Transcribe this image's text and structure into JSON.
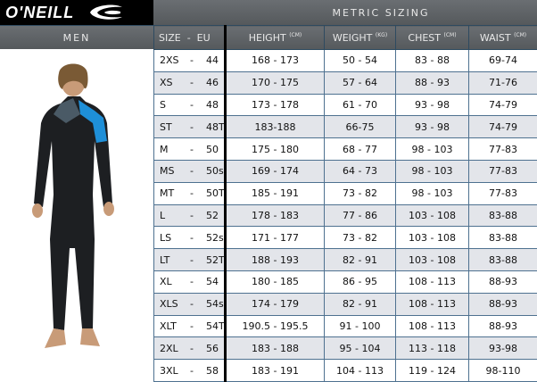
{
  "brand": {
    "logo": "O'NEILL",
    "logo_icon": "wave-icon"
  },
  "left_header": "MEN",
  "metric_title": "METRIC SIZING",
  "columns": [
    {
      "label": "SIZE  -  EU",
      "unit": ""
    },
    {
      "label": "HEIGHT",
      "unit": "(CM)"
    },
    {
      "label": "WEIGHT",
      "unit": "(KG)"
    },
    {
      "label": "CHEST",
      "unit": "(CM)"
    },
    {
      "label": "WAIST",
      "unit": "(CM)"
    }
  ],
  "rows": [
    {
      "size": "2XS",
      "eu": "44",
      "height": "168 - 173",
      "weight": "50 - 54",
      "chest": "83 - 88",
      "waist": "69-74"
    },
    {
      "size": "XS",
      "eu": "46",
      "height": "170 - 175",
      "weight": "57 - 64",
      "chest": "88 - 93",
      "waist": "71-76"
    },
    {
      "size": "S",
      "eu": "48",
      "height": "173 - 178",
      "weight": "61 - 70",
      "chest": "93 - 98",
      "waist": "74-79"
    },
    {
      "size": "ST",
      "eu": "48T",
      "height": "183-188",
      "weight": "66-75",
      "chest": "93 - 98",
      "waist": "74-79"
    },
    {
      "size": "M",
      "eu": "50",
      "height": "175 - 180",
      "weight": "68 - 77",
      "chest": "98 - 103",
      "waist": "77-83"
    },
    {
      "size": "MS",
      "eu": "50s",
      "height": "169 - 174",
      "weight": "64 - 73",
      "chest": "98 - 103",
      "waist": "77-83"
    },
    {
      "size": "MT",
      "eu": "50T",
      "height": "185 - 191",
      "weight": "73 - 82",
      "chest": "98 - 103",
      "waist": "77-83"
    },
    {
      "size": "L",
      "eu": "52",
      "height": "178 - 183",
      "weight": "77 - 86",
      "chest": "103 - 108",
      "waist": "83-88"
    },
    {
      "size": "LS",
      "eu": "52s",
      "height": "171 - 177",
      "weight": "73 - 82",
      "chest": "103 - 108",
      "waist": "83-88"
    },
    {
      "size": "LT",
      "eu": "52T",
      "height": "188 - 193",
      "weight": "82 - 91",
      "chest": "103 - 108",
      "waist": "83-88"
    },
    {
      "size": "XL",
      "eu": "54",
      "height": "180 - 185",
      "weight": "86 - 95",
      "chest": "108 - 113",
      "waist": "88-93"
    },
    {
      "size": "XLS",
      "eu": "54s",
      "height": "174 - 179",
      "weight": "82 - 91",
      "chest": "108 - 113",
      "waist": "88-93"
    },
    {
      "size": "XLT",
      "eu": "54T",
      "height": "190.5 - 195.5",
      "weight": "91 - 100",
      "chest": "108 - 113",
      "waist": "88-93"
    },
    {
      "size": "2XL",
      "eu": "56",
      "height": "183 - 188",
      "weight": "95 - 104",
      "chest": "113 - 118",
      "waist": "93-98"
    },
    {
      "size": "3XL",
      "eu": "58",
      "height": "183 - 191",
      "weight": "104 - 113",
      "chest": "119 - 124",
      "waist": "98-110"
    }
  ],
  "colors": {
    "header": "#5f6366",
    "accent_blue": "#1e8fd8",
    "grid": "#4e7190",
    "alt_row": "#e3e5ea"
  }
}
